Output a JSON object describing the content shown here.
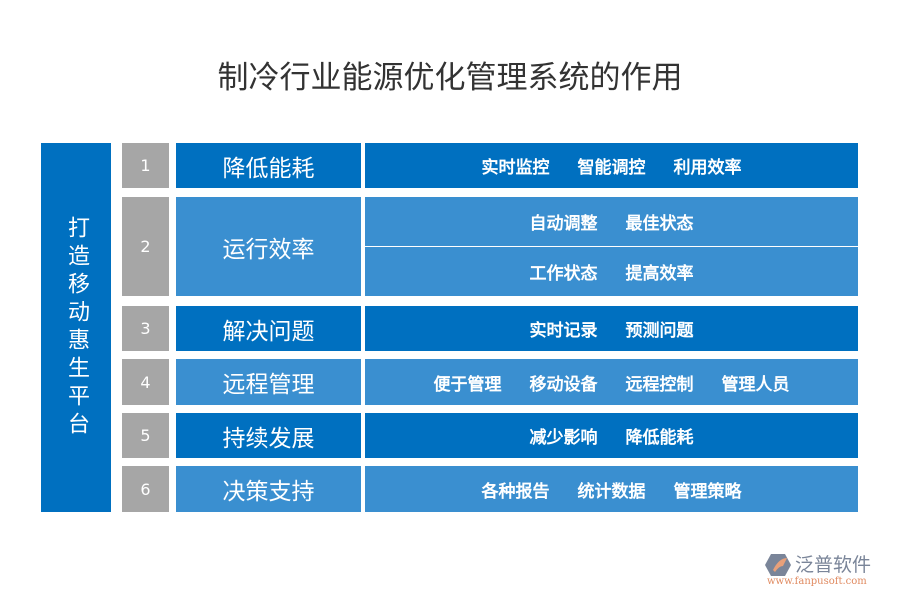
{
  "title": "制冷行业能源优化管理系统的作用",
  "side_label": "打造移动惠生平台",
  "rows": [
    {
      "num": "1",
      "label": "降低能耗",
      "items": [
        [
          "实时监控",
          "智能调控",
          "利用效率"
        ]
      ]
    },
    {
      "num": "2",
      "label": "运行效率",
      "items": [
        [
          "自动调整",
          "最佳状态"
        ],
        [
          "工作状态",
          "提高效率"
        ]
      ]
    },
    {
      "num": "3",
      "label": "解决问题",
      "items": [
        [
          "实时记录",
          "预测问题"
        ]
      ]
    },
    {
      "num": "4",
      "label": "远程管理",
      "items": [
        [
          "便于管理",
          "移动设备",
          "远程控制",
          "管理人员"
        ]
      ]
    },
    {
      "num": "5",
      "label": "持续发展",
      "items": [
        [
          "减少影响",
          "降低能耗"
        ]
      ]
    },
    {
      "num": "6",
      "label": "决策支持",
      "items": [
        [
          "各种报告",
          "统计数据",
          "管理策略"
        ]
      ]
    }
  ],
  "logo": {
    "name": "泛普软件",
    "url": "www.fanpusoft.com"
  },
  "colors": {
    "dark_blue": "#0070c0",
    "light_blue": "#3a8fd0",
    "gray": "#a6a6a6"
  }
}
